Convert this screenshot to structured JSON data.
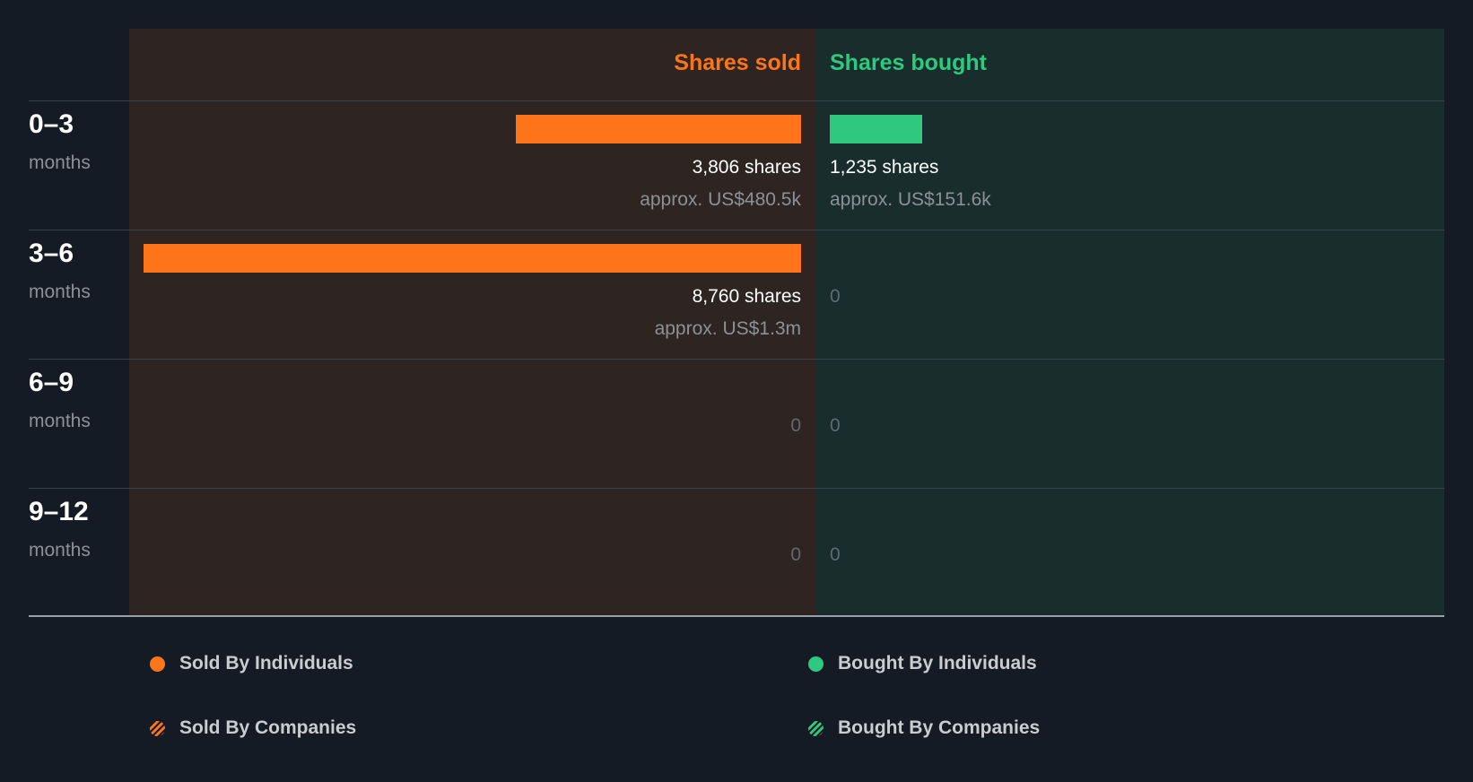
{
  "colors": {
    "sold": "#fd7518",
    "bought": "#2ec87e",
    "sold_panel": "#2e2422",
    "bought_panel": "#182d2c",
    "background": "#151b24"
  },
  "chart_data": {
    "type": "bar",
    "orientation": "horizontal-diverging",
    "series": [
      {
        "name": "Shares sold",
        "values": [
          3806,
          8760,
          0,
          0
        ]
      },
      {
        "name": "Shares bought",
        "values": [
          1235,
          0,
          0,
          0
        ]
      }
    ],
    "categories": [
      "0–3 months",
      "3–6 months",
      "6–9 months",
      "9–12 months"
    ],
    "xlim": [
      0,
      8760
    ],
    "headers": {
      "sold": "Shares sold",
      "bought": "Shares bought"
    },
    "periods": [
      {
        "range": "0–3",
        "unit": "months",
        "sold": {
          "value": 3806,
          "shares_label": "3,806 shares",
          "approx_label": "approx. US$480.5k",
          "zero_label": ""
        },
        "bought": {
          "value": 1235,
          "shares_label": "1,235 shares",
          "approx_label": "approx. US$151.6k",
          "zero_label": ""
        }
      },
      {
        "range": "3–6",
        "unit": "months",
        "sold": {
          "value": 8760,
          "shares_label": "8,760 shares",
          "approx_label": "approx. US$1.3m",
          "zero_label": ""
        },
        "bought": {
          "value": 0,
          "shares_label": "",
          "approx_label": "",
          "zero_label": "0"
        }
      },
      {
        "range": "6–9",
        "unit": "months",
        "sold": {
          "value": 0,
          "shares_label": "",
          "approx_label": "",
          "zero_label": "0"
        },
        "bought": {
          "value": 0,
          "shares_label": "",
          "approx_label": "",
          "zero_label": "0"
        }
      },
      {
        "range": "9–12",
        "unit": "months",
        "sold": {
          "value": 0,
          "shares_label": "",
          "approx_label": "",
          "zero_label": "0"
        },
        "bought": {
          "value": 0,
          "shares_label": "",
          "approx_label": "",
          "zero_label": "0"
        }
      }
    ],
    "legend": [
      {
        "label": "Sold By Individuals",
        "color": "#fd7518",
        "pattern": "solid"
      },
      {
        "label": "Bought By Individuals",
        "color": "#2ec87e",
        "pattern": "solid"
      },
      {
        "label": "Sold By Companies",
        "color": "#fd7518",
        "pattern": "striped"
      },
      {
        "label": "Bought By Companies",
        "color": "#2ec87e",
        "pattern": "striped"
      }
    ]
  }
}
